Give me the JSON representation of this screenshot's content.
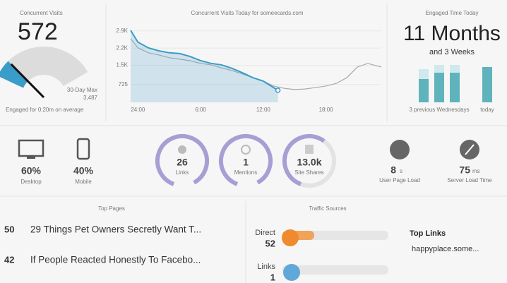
{
  "concurrent_visits": {
    "title": "Concurrent Visits",
    "value": 572,
    "max_label": "30-Day Max",
    "max": {
      "value": 3487,
      "label": "3,487"
    },
    "engaged": "Engaged for 0:20m on average"
  },
  "today_chart": {
    "type": "line",
    "title": "Concurrent Visits Today for someecards.com",
    "xlim": [
      -0.7,
      23.3
    ],
    "xticks": [
      {
        "value": 0,
        "label": "24:00"
      },
      {
        "value": 6,
        "label": "6:00"
      },
      {
        "value": 12,
        "label": "12:00"
      },
      {
        "value": 18,
        "label": "18:00"
      }
    ],
    "ylim": [
      0,
      3150
    ],
    "yticks": [
      725,
      {
        "value": 1500,
        "label": "1.5K"
      },
      {
        "value": 2200,
        "label": "2.2K"
      },
      {
        "value": 2900,
        "label": "2.9K"
      }
    ],
    "grid": true,
    "series": [
      {
        "color": "#aaaaaa",
        "fill": false,
        "x": [
          -0.7,
          0,
          1,
          2,
          3,
          4,
          5,
          6,
          7,
          8,
          9,
          10,
          11,
          12,
          13,
          14,
          15,
          16,
          17,
          18,
          19,
          20,
          21,
          22,
          23.3
        ],
        "values": [
          2580,
          2210,
          2010,
          1920,
          1810,
          1750,
          1690,
          1580,
          1520,
          1400,
          1290,
          1150,
          1000,
          860,
          660,
          570,
          520,
          540,
          600,
          660,
          770,
          1000,
          1430,
          1580,
          1430
        ]
      },
      {
        "color": "#3a9cc8",
        "fill": true,
        "x": [
          -0.7,
          0,
          1,
          2,
          3,
          4,
          5,
          6,
          7,
          8,
          9,
          10,
          11,
          12,
          13.4
        ],
        "values": [
          2920,
          2440,
          2210,
          2090,
          2010,
          1980,
          1860,
          1690,
          1580,
          1520,
          1380,
          1200,
          1000,
          860,
          490
        ]
      }
    ]
  },
  "engaged_time": {
    "title": "Engaged Time Today",
    "value": "11 Months",
    "subvalue": "and 3 Weeks",
    "chart": {
      "type": "bar",
      "ylim": [
        0,
        55
      ],
      "series": [
        {
          "color": "#5fb3bd",
          "values": [
            33,
            42,
            42,
            50
          ]
        },
        {
          "color": "#cfe9ec",
          "values": [
            14,
            11,
            11,
            0
          ]
        }
      ]
    },
    "labels": [
      "3 previous Wednesdays",
      "today"
    ]
  },
  "devices": [
    {
      "value": "60%",
      "label": "Desktop"
    },
    {
      "value": "40%",
      "label": "Mobile"
    }
  ],
  "social": [
    {
      "value": "26",
      "label": "Links"
    },
    {
      "value": "1",
      "label": "Mentions"
    },
    {
      "value": "13.0k",
      "label": "Site Shares"
    }
  ],
  "load": [
    {
      "value": "8",
      "unit": "s",
      "label": "User Page Load"
    },
    {
      "value": "75",
      "unit": "ms",
      "label": "Server Load Time"
    }
  ],
  "top_pages": {
    "title": "Top Pages",
    "rows": [
      {
        "count": "50",
        "title": "29 Things Pet Owners Secretly Want T..."
      },
      {
        "count": "42",
        "title": "If People Reacted Honestly To Facebo..."
      }
    ]
  },
  "traffic_sources": {
    "title": "Traffic Sources",
    "rows": [
      {
        "label": "Direct",
        "count": "52"
      },
      {
        "label": "Links",
        "count": "1"
      }
    ],
    "top_links_title": "Top Links",
    "top_links": [
      "happyplace.some..."
    ]
  }
}
